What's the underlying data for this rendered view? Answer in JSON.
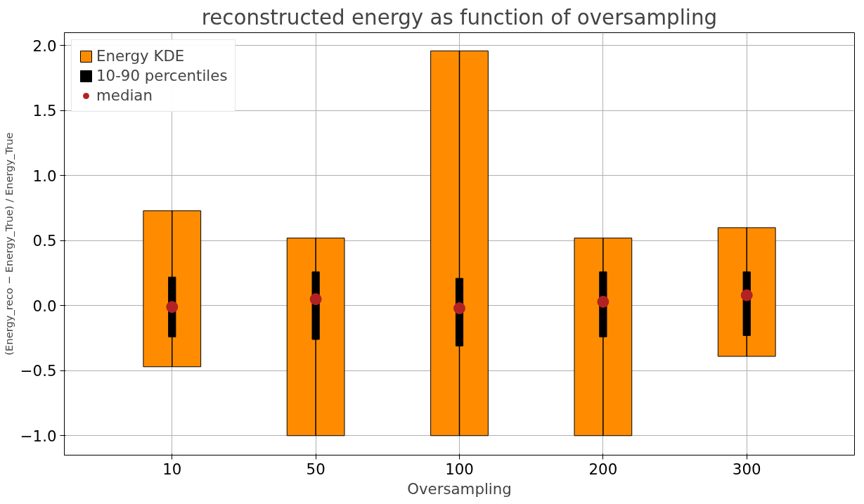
{
  "chart_data": {
    "type": "box",
    "title": "reconstructed energy as function of oversampling",
    "xlabel": "Oversampling",
    "ylabel": "(Energy_reco − Energy_True) / Energy_True",
    "categories": [
      "10",
      "50",
      "100",
      "200",
      "300"
    ],
    "series": [
      {
        "name": "Energy KDE",
        "type": "bar",
        "color": "#ff8c00",
        "base": [
          -0.47,
          -1.0,
          -1.0,
          -1.0,
          -0.39
        ],
        "values": [
          1.2,
          1.52,
          2.96,
          1.52,
          0.99
        ]
      },
      {
        "name": "10-90 percentiles",
        "color": "#000000",
        "boxes": [
          {
            "low": -0.47,
            "q1": -0.24,
            "median": -0.01,
            "q3": 0.22,
            "high": 0.73
          },
          {
            "low": -1.0,
            "q1": -0.26,
            "median": 0.05,
            "q3": 0.26,
            "high": 0.52
          },
          {
            "low": -1.0,
            "q1": -0.31,
            "median": -0.02,
            "q3": 0.21,
            "high": 1.96
          },
          {
            "low": -1.0,
            "q1": -0.24,
            "median": 0.03,
            "q3": 0.26,
            "high": 0.52
          },
          {
            "low": -0.39,
            "q1": -0.23,
            "median": 0.08,
            "q3": 0.26,
            "high": 0.6
          }
        ]
      },
      {
        "name": "median",
        "type": "scatter",
        "color": "#b22222",
        "marker": "circle",
        "values": [
          -0.01,
          0.05,
          -0.02,
          0.03,
          0.08
        ]
      }
    ],
    "ylim": [
      -1.15,
      2.1
    ],
    "yticks": [
      {
        "value": -1.0,
        "label": "−1.0"
      },
      {
        "value": -0.5,
        "label": "−0.5"
      },
      {
        "value": 0.0,
        "label": "0.0"
      },
      0.5,
      {
        "value": 1.0,
        "label": "1.0"
      },
      1.5,
      {
        "value": 2.0,
        "label": "2.0"
      }
    ],
    "grid": true,
    "legend": "top left"
  }
}
